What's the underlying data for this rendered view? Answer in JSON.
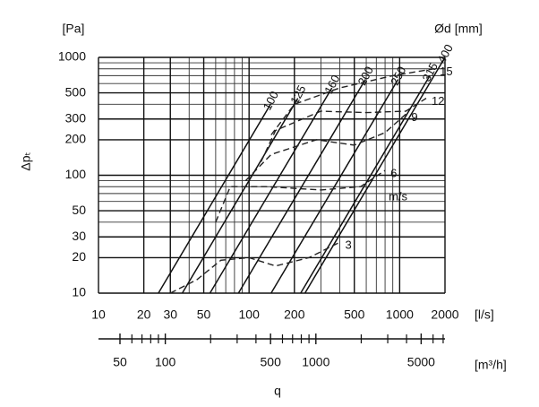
{
  "chart_data": {
    "type": "line",
    "y_unit": "[Pa]",
    "y_label": "Δpₜ",
    "diameter_label": "Ød [mm]",
    "x_unit": "[l/s]",
    "x2_unit": "[m³/h]",
    "x_label": "q",
    "velocity_label": "m/s",
    "log_scale": true,
    "grid": true,
    "xlim": [
      10,
      2000
    ],
    "ylim": [
      10,
      1000
    ],
    "xticks": [
      10,
      20,
      30,
      50,
      100,
      200,
      500,
      1000,
      2000
    ],
    "xminor": [
      40,
      60,
      70,
      80,
      90,
      300,
      400,
      600,
      700,
      800,
      900
    ],
    "yticks": [
      10,
      20,
      30,
      50,
      100,
      200,
      300,
      500,
      1000
    ],
    "yminor": [
      40,
      60,
      70,
      80,
      90,
      400,
      600,
      700,
      800,
      900
    ],
    "x2lim": [
      36,
      7200
    ],
    "x2ticks": [
      50,
      100,
      500,
      1000,
      5000
    ],
    "x2minor": [
      60,
      70,
      80,
      90,
      200,
      300,
      400,
      600,
      700,
      800,
      900,
      2000,
      3000,
      4000,
      6000,
      7000
    ],
    "series": [
      {
        "name": "100",
        "kind": "diameter",
        "color": "#111111",
        "x": [
          25,
          139
        ],
        "values": [
          10,
          400
        ]
      },
      {
        "name": "125",
        "kind": "diameter",
        "color": "#111111",
        "x": [
          36,
          211
        ],
        "values": [
          10,
          450
        ]
      },
      {
        "name": "160",
        "kind": "diameter",
        "color": "#111111",
        "x": [
          55,
          355
        ],
        "values": [
          10,
          550
        ]
      },
      {
        "name": "200",
        "kind": "diameter",
        "color": "#111111",
        "x": [
          85,
          592
        ],
        "values": [
          10,
          650
        ]
      },
      {
        "name": "250",
        "kind": "diameter",
        "color": "#111111",
        "x": [
          140,
          976
        ],
        "values": [
          10,
          650
        ]
      },
      {
        "name": "315",
        "kind": "diameter",
        "color": "#111111",
        "x": [
          220,
          1586
        ],
        "values": [
          10,
          700
        ]
      },
      {
        "name": "400",
        "kind": "diameter",
        "color": "#111111",
        "x": [
          235,
          2000
        ],
        "values": [
          10,
          1000
        ]
      },
      {
        "name": "3",
        "kind": "velocity",
        "color": "#222222",
        "x": [
          30,
          45,
          65,
          100,
          150,
          250,
          400
        ],
        "values": [
          10,
          13,
          19,
          20,
          17,
          20,
          27
        ]
      },
      {
        "name": "6",
        "kind": "velocity",
        "color": "#222222",
        "x": [
          60,
          75,
          130,
          300,
          550,
          800
        ],
        "values": [
          40,
          80,
          80,
          75,
          80,
          110
        ]
      },
      {
        "name": "9",
        "kind": "velocity",
        "color": "#222222",
        "x": [
          95,
          140,
          280,
          500,
          800,
          1100
        ],
        "values": [
          90,
          150,
          200,
          180,
          230,
          330
        ]
      },
      {
        "name": "12",
        "kind": "velocity",
        "color": "#222222",
        "x": [
          120,
          150,
          300,
          600,
          1100,
          1500
        ],
        "values": [
          130,
          240,
          350,
          340,
          350,
          450
        ]
      },
      {
        "name": "15",
        "kind": "velocity",
        "color": "#222222",
        "x": [
          140,
          200,
          400,
          900,
          1700
        ],
        "values": [
          220,
          400,
          550,
          700,
          800
        ]
      }
    ]
  }
}
